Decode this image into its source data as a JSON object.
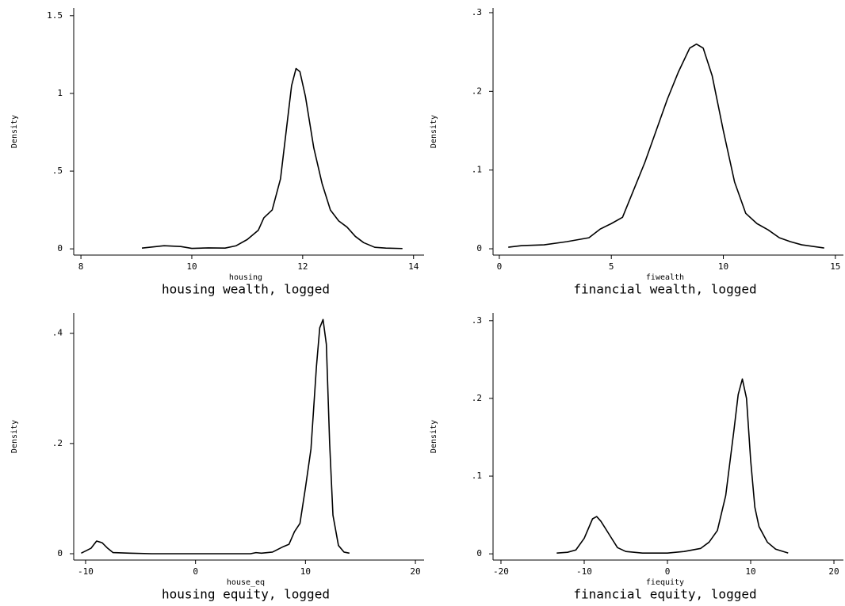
{
  "chart_data": [
    {
      "type": "line",
      "title": "housing wealth, logged",
      "xlabel": "housing",
      "ylabel": "Density",
      "color": "#000000",
      "x": [
        9.1,
        9.5,
        9.8,
        10,
        10.3,
        10.6,
        10.8,
        11,
        11.2,
        11.3,
        11.45,
        11.6,
        11.7,
        11.8,
        11.88,
        11.95,
        12.05,
        12.2,
        12.35,
        12.5,
        12.65,
        12.8,
        12.95,
        13.1,
        13.3,
        13.5,
        13.8
      ],
      "values": [
        0.005,
        0.02,
        0.015,
        0.003,
        0.006,
        0.005,
        0.02,
        0.06,
        0.12,
        0.2,
        0.25,
        0.45,
        0.75,
        1.05,
        1.16,
        1.14,
        0.98,
        0.65,
        0.42,
        0.25,
        0.18,
        0.14,
        0.08,
        0.04,
        0.01,
        0.005,
        0.002
      ],
      "xlim": [
        7.87,
        14.19
      ],
      "xticks": [
        8,
        10,
        12,
        14
      ],
      "ylim": [
        -0.04,
        1.55
      ],
      "yticks": [
        0,
        {
          "value": 0.5,
          "label": ".5"
        },
        1,
        1.5
      ]
    },
    {
      "type": "line",
      "title": "financial wealth, logged",
      "xlabel": "fiwealth",
      "ylabel": "Density",
      "color": "#000000",
      "x": [
        0.4,
        1,
        2,
        3,
        4,
        4.5,
        5,
        5.5,
        6,
        6.5,
        7,
        7.5,
        8,
        8.5,
        8.8,
        9.1,
        9.5,
        10,
        10.5,
        11,
        11.5,
        12,
        12.5,
        13,
        13.5,
        14.5
      ],
      "values": [
        0.002,
        0.004,
        0.005,
        0.009,
        0.014,
        0.025,
        0.032,
        0.04,
        0.075,
        0.11,
        0.15,
        0.19,
        0.225,
        0.255,
        0.26,
        0.255,
        0.22,
        0.15,
        0.085,
        0.045,
        0.032,
        0.024,
        0.014,
        0.009,
        0.005,
        0.001
      ],
      "xlim": [
        -0.28,
        15.36
      ],
      "xticks": [
        0,
        5,
        10,
        15
      ],
      "ylim": [
        -0.008,
        0.306
      ],
      "yticks": [
        0,
        {
          "value": 0.1,
          "label": ".1"
        },
        {
          "value": 0.2,
          "label": ".2"
        },
        {
          "value": 0.3,
          "label": ".3"
        }
      ]
    },
    {
      "type": "line",
      "title": "housing equity, logged",
      "xlabel": "house_eq",
      "ylabel": "Density",
      "color": "#000000",
      "x": [
        -10.4,
        -9.5,
        -9,
        -8.5,
        -8,
        -7.5,
        -6,
        -4,
        0,
        4,
        5,
        5.5,
        6,
        7,
        7.5,
        8,
        8.5,
        9,
        9.5,
        10,
        10.5,
        11,
        11.3,
        11.6,
        11.9,
        12.2,
        12.5,
        13,
        13.5,
        14
      ],
      "values": [
        0.001,
        0.01,
        0.023,
        0.02,
        0.01,
        0.002,
        0.001,
        0,
        0,
        0,
        0,
        0.002,
        0.001,
        0.003,
        0.008,
        0.013,
        0.017,
        0.04,
        0.055,
        0.12,
        0.19,
        0.34,
        0.41,
        0.425,
        0.38,
        0.2,
        0.07,
        0.015,
        0.003,
        0.001
      ],
      "xlim": [
        -11.08,
        20.79
      ],
      "xticks": [
        -10,
        0,
        10,
        20
      ],
      "ylim": [
        -0.0115,
        0.437
      ],
      "yticks": [
        0,
        {
          "value": 0.2,
          "label": ".2"
        },
        {
          "value": 0.4,
          "label": ".4"
        }
      ]
    },
    {
      "type": "line",
      "title": "financial equity, logged",
      "xlabel": "fiequity",
      "ylabel": "Density",
      "color": "#000000",
      "x": [
        -13.3,
        -12,
        -11,
        -10,
        -9,
        -8.5,
        -8,
        -7,
        -6,
        -5,
        -3,
        0,
        2,
        4,
        5,
        6,
        7,
        8,
        8.5,
        9,
        9.5,
        10,
        10.5,
        11,
        12,
        13,
        14.5
      ],
      "values": [
        0.001,
        0.002,
        0.005,
        0.02,
        0.045,
        0.048,
        0.042,
        0.025,
        0.008,
        0.003,
        0.001,
        0.001,
        0.003,
        0.007,
        0.015,
        0.03,
        0.075,
        0.16,
        0.205,
        0.225,
        0.2,
        0.12,
        0.06,
        0.035,
        0.015,
        0.006,
        0.001
      ],
      "xlim": [
        -20.95,
        21.14
      ],
      "xticks": [
        -20,
        -10,
        0,
        10,
        20
      ],
      "ylim": [
        -0.008,
        0.31
      ],
      "yticks": [
        0,
        {
          "value": 0.1,
          "label": ".1"
        },
        {
          "value": 0.2,
          "label": ".2"
        },
        {
          "value": 0.3,
          "label": ".3"
        }
      ]
    }
  ]
}
